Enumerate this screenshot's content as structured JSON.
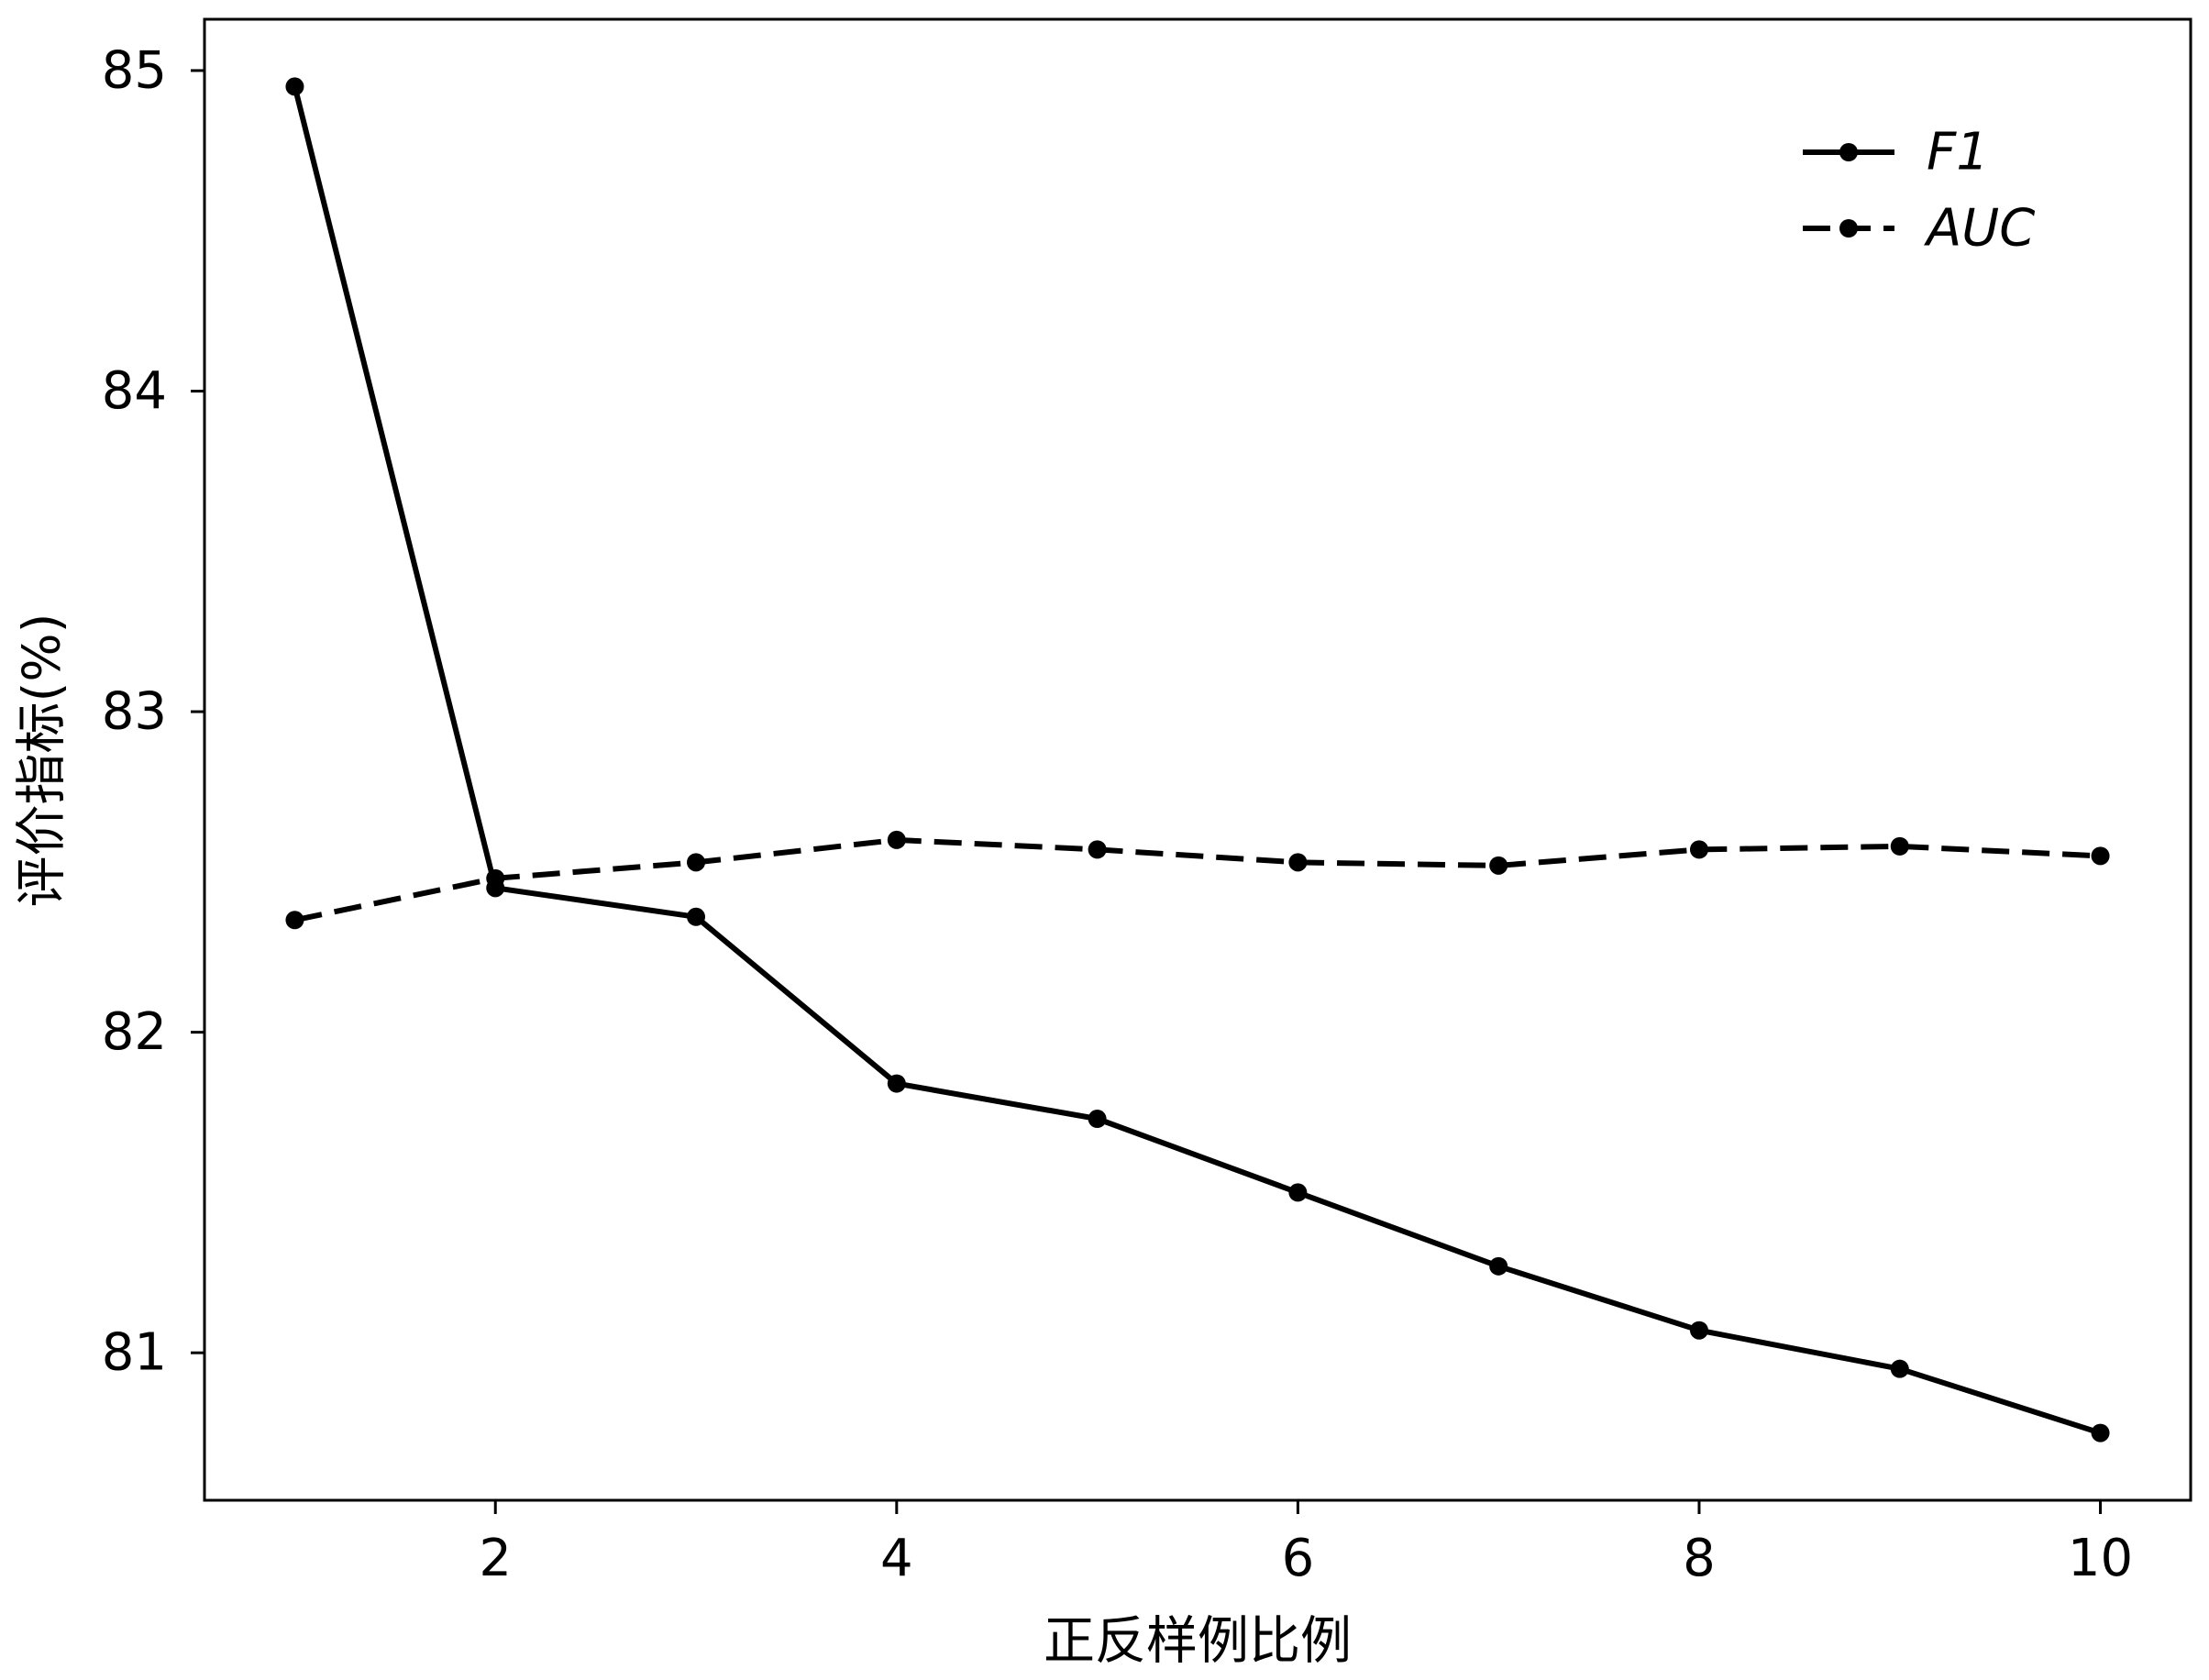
{
  "chart_data": {
    "type": "line",
    "xlabel": "正反样例比例",
    "ylabel": "评价指标(%)",
    "x": [
      1,
      2,
      3,
      4,
      5,
      6,
      7,
      8,
      9,
      10
    ],
    "xticks": [
      2,
      4,
      6,
      8,
      10
    ],
    "yticks": [
      81,
      82,
      83,
      84,
      85
    ],
    "xlim": [
      0.55,
      10.45
    ],
    "ylim": [
      80.54,
      85.16
    ],
    "grid": false,
    "legend": "top-right",
    "series": [
      {
        "name": "F1",
        "line_style": "solid",
        "marker": "circle",
        "color": "#000000",
        "values": [
          84.95,
          82.45,
          82.36,
          81.84,
          81.73,
          81.5,
          81.27,
          81.07,
          80.95,
          80.75
        ]
      },
      {
        "name": "AUC",
        "line_style": "dashed",
        "marker": "circle",
        "color": "#000000",
        "values": [
          82.35,
          82.48,
          82.53,
          82.6,
          82.57,
          82.53,
          82.52,
          82.57,
          82.58,
          82.55
        ]
      }
    ]
  }
}
